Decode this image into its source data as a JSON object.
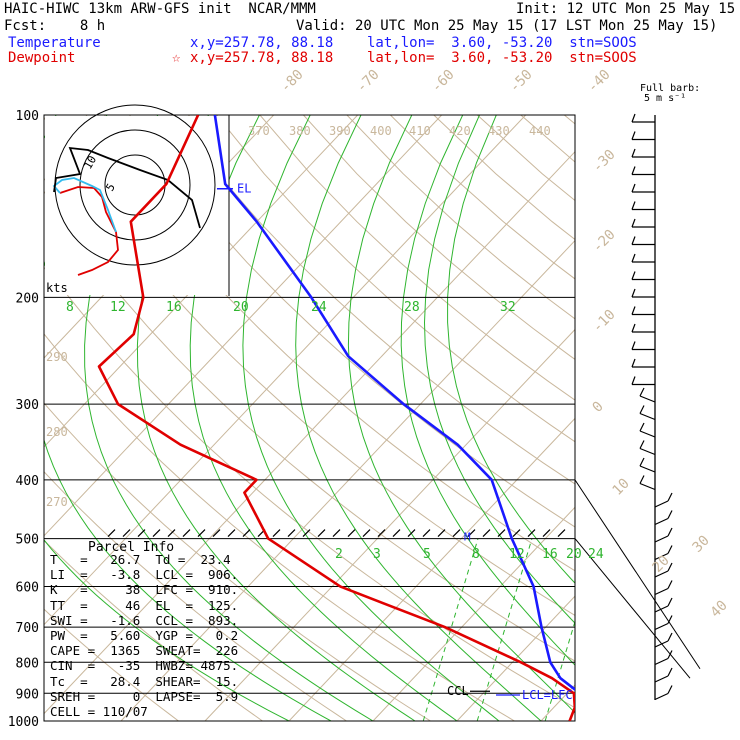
{
  "header": {
    "line1_left": "HAIC-HIWC 13km ARW-GFS init  NCAR/MMM",
    "line1_right": "Init: 12 UTC Mon 25 May 15",
    "line2_left": "Fcst:    8 h",
    "line2_right": "Valid: 20 UTC Mon 25 May 15 (17 LST Mon 25 May 15)",
    "temperature_label": "Temperature",
    "temperature_info": "x,y=257.78, 88.18    lat,lon=  3.60, -53.20  stn=SOOS",
    "dewpoint_label": "Dewpoint",
    "dewpoint_marker": "☆",
    "dewpoint_info": "x,y=257.78, 88.18    lat,lon=  3.60, -53.20  stn=SOOS",
    "barb_label_1": "Full barb:",
    "barb_label_2": "5 m s⁻¹"
  },
  "chart_data": {
    "type": "line",
    "title": "",
    "xlabel": "",
    "ylabel": "",
    "pressure_ticks": [
      "100",
      "200",
      "300",
      "400",
      "500",
      "600",
      "700",
      "800",
      "900",
      "1000"
    ],
    "pressure_values": [
      100,
      200,
      300,
      400,
      500,
      600,
      700,
      800,
      900,
      1000
    ],
    "isotherm_labels": [
      "-80",
      "-70",
      "-60",
      "-50",
      "-40",
      "-30",
      "-20",
      "-10",
      "0",
      "10",
      "20",
      "30",
      "40"
    ],
    "theta_labels": [
      "370",
      "380",
      "390",
      "400",
      "410",
      "420",
      "430",
      "440",
      "290",
      "280",
      "270"
    ],
    "mixing_ratio_upper": [
      "8",
      "12",
      "16",
      "20",
      "24",
      "28",
      "32"
    ],
    "mixing_ratio_lower": [
      "2",
      "3",
      "5",
      "8",
      "12",
      "16",
      "20",
      "24"
    ],
    "level_labels": {
      "el": "EL",
      "ccl": "CCL",
      "lcl_lfc": "LCL=LFC",
      "m_marker": "M"
    },
    "series": [
      {
        "name": "Temperature",
        "color": "#1a1aff",
        "points": [
          [
            100,
            -87.0
          ],
          [
            130,
            -78.0
          ],
          [
            150,
            -70.0
          ],
          [
            200,
            -55.0
          ],
          [
            250,
            -44.0
          ],
          [
            300,
            -32.0
          ],
          [
            350,
            -21.0
          ],
          [
            400,
            -13.0
          ],
          [
            500,
            -4.0
          ],
          [
            600,
            4.0
          ],
          [
            700,
            9.5
          ],
          [
            800,
            14.5
          ],
          [
            850,
            17.5
          ],
          [
            900,
            21.5
          ],
          [
            950,
            24.5
          ],
          [
            1000,
            26.7
          ]
        ]
      },
      {
        "name": "Dewpoint",
        "color": "#e00000",
        "points": [
          [
            100,
            -89.0
          ],
          [
            130,
            -85.0
          ],
          [
            150,
            -85.0
          ],
          [
            200,
            -75.0
          ],
          [
            230,
            -72.0
          ],
          [
            260,
            -72.5
          ],
          [
            300,
            -66.0
          ],
          [
            350,
            -54.0
          ],
          [
            400,
            -41.0
          ],
          [
            420,
            -41.0
          ],
          [
            500,
            -33.0
          ],
          [
            600,
            -19.0
          ],
          [
            700,
            -2.0
          ],
          [
            800,
            11.0
          ],
          [
            850,
            16.5
          ],
          [
            900,
            20.8
          ],
          [
            950,
            22.5
          ],
          [
            1000,
            23.4
          ]
        ]
      }
    ],
    "hodograph": {
      "ring_labels": [
        "5",
        "10"
      ],
      "unit_label": "kts"
    }
  },
  "parcel_info": {
    "title": "Parcel Info",
    "rows": [
      "T   =   26.7  Td =  23.4",
      "LI  =   -3.8  LCL =  906.",
      "K   =     38  LFC =  910.",
      "TT  =     46  EL  =  125.",
      "SWI =   -1.6  CCL =  893.",
      "PW  =   5.60  YGP =   0.2",
      "CAPE =  1365  SWEAT=  226",
      "CIN  =   -35  HWBZ= 4875.",
      "Tc  =   28.4  SHEAR=  15.",
      "SREH =     0  LAPSE=  5.9",
      "CELL = 110/07"
    ]
  }
}
